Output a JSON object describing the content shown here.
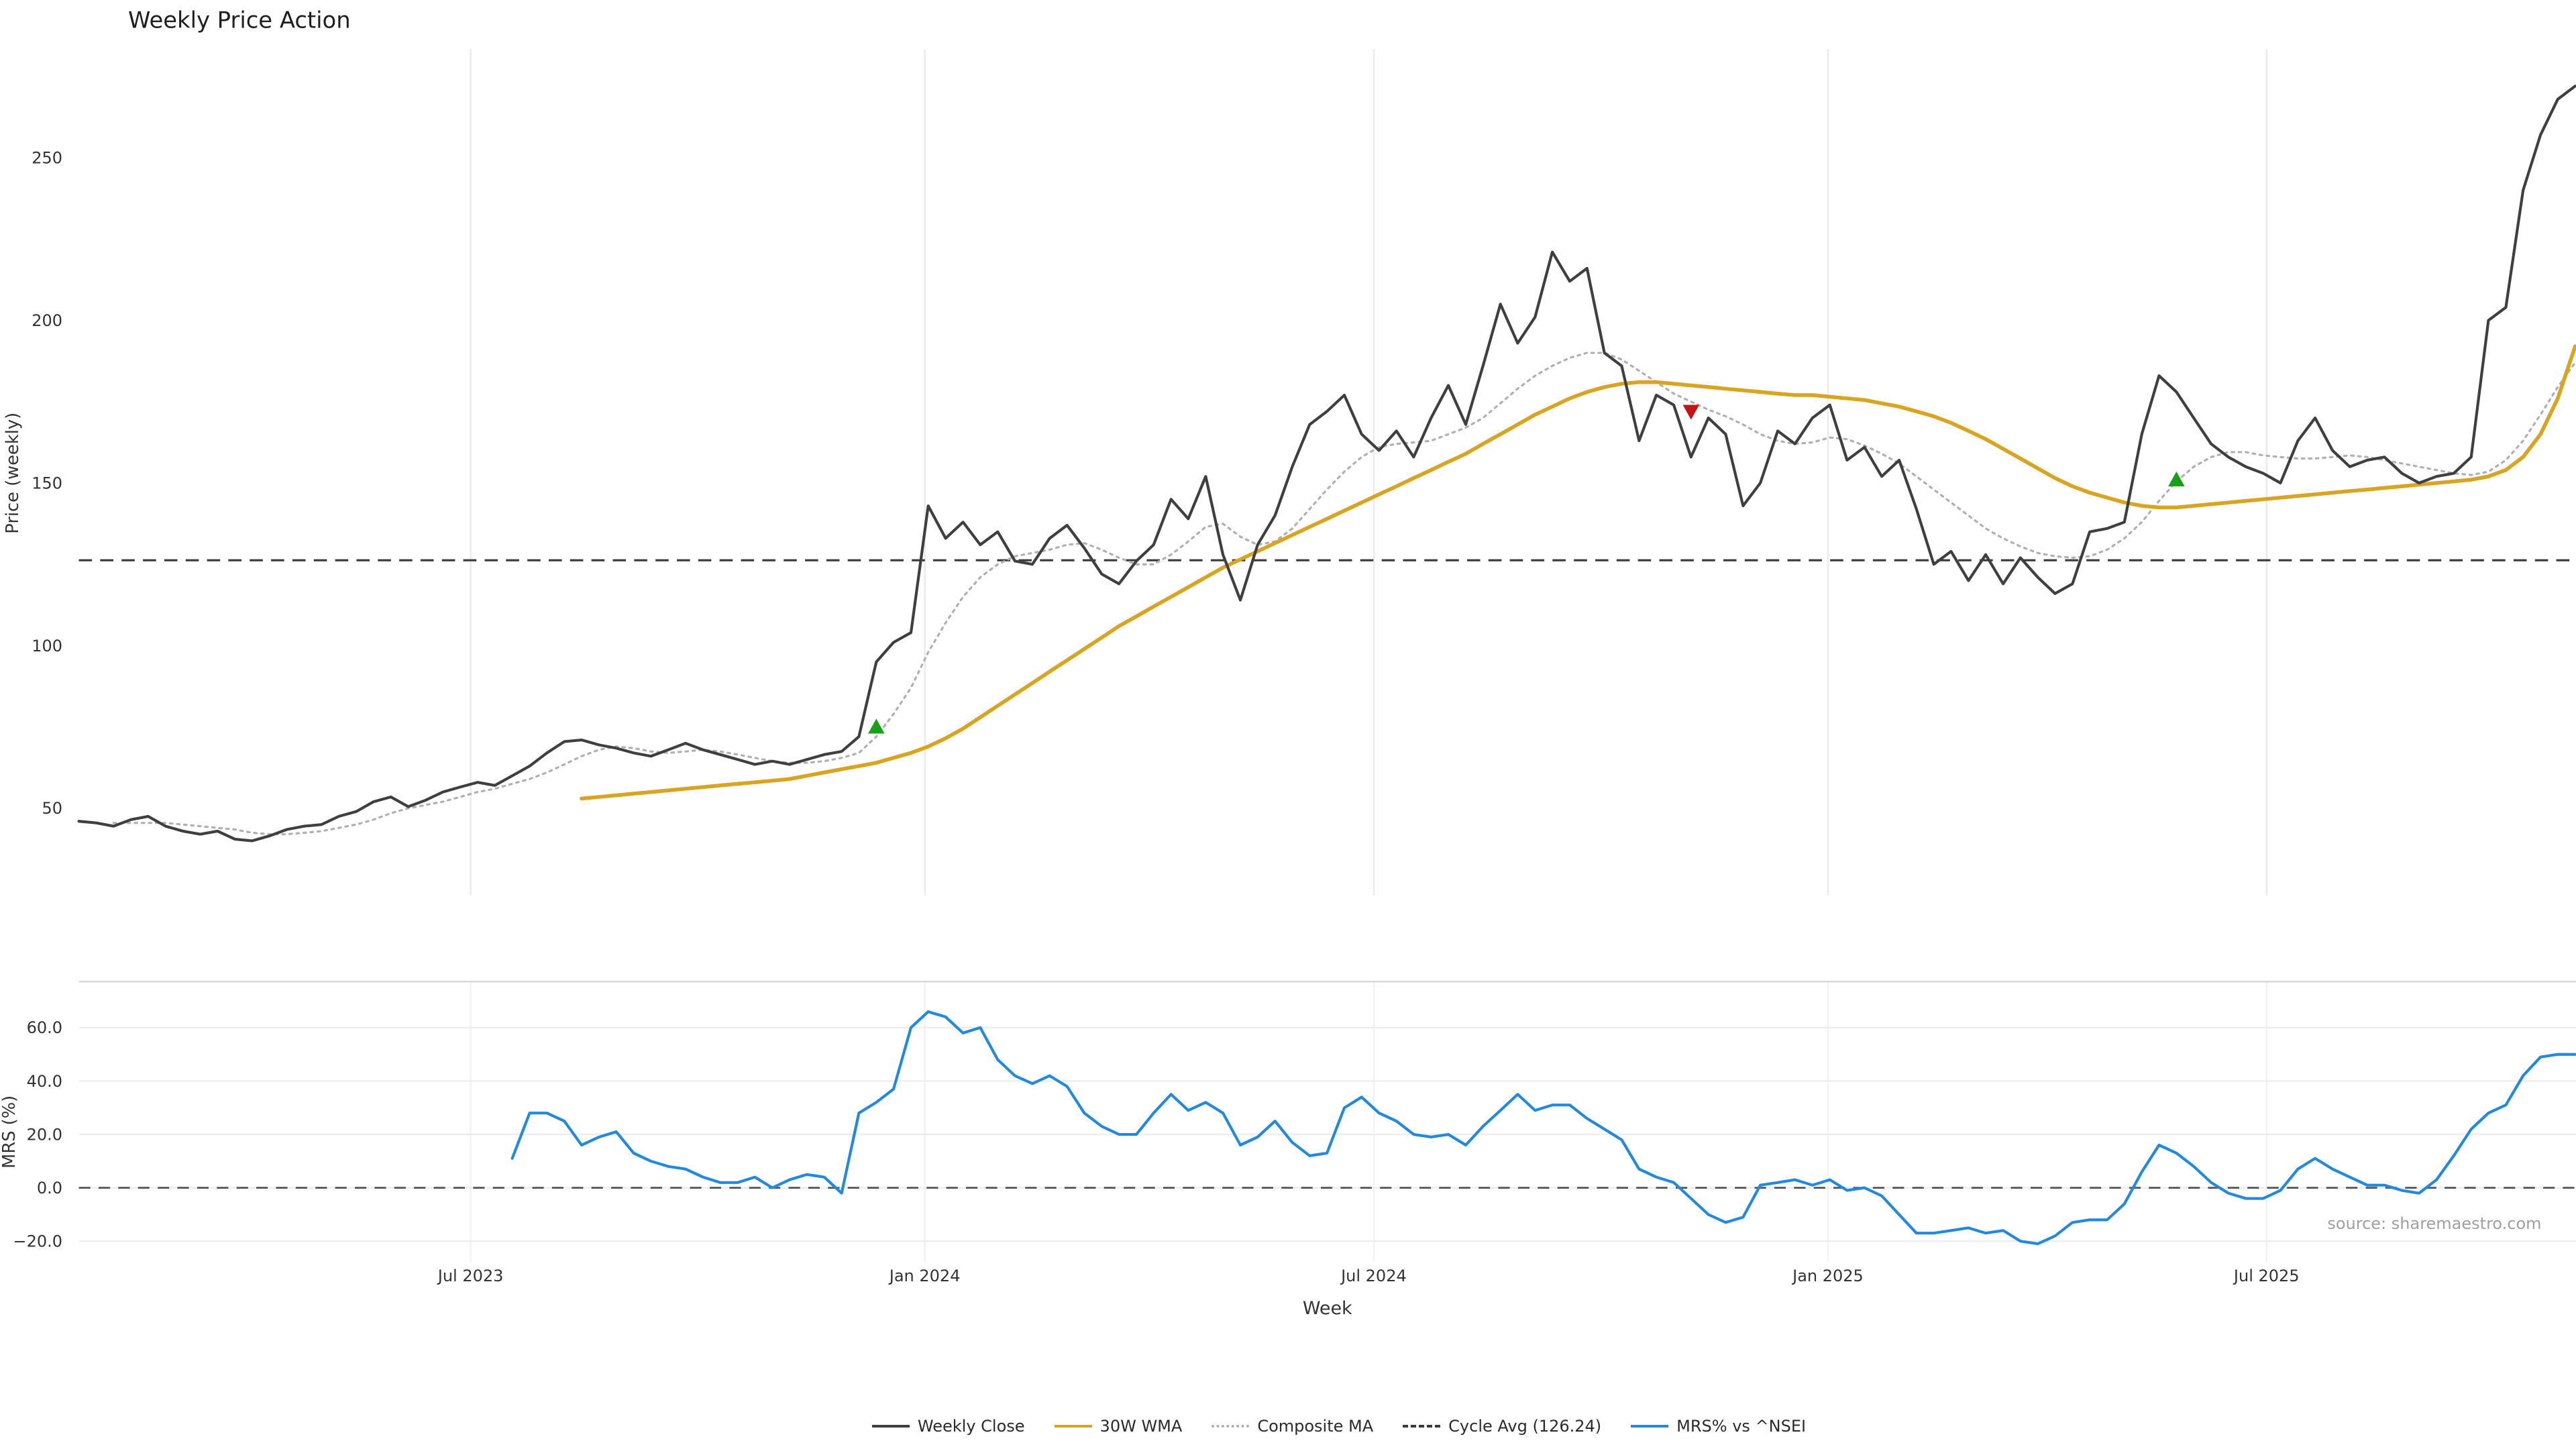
{
  "title": "Weekly Price Action",
  "source_note": "source: sharemaestro.com",
  "axes": {
    "xlabel": "Week",
    "price_ylabel": "Price (weekly)",
    "mrs_ylabel": "MRS (%)"
  },
  "colors": {
    "close": "#3f3f3f",
    "wma": "#d9a521",
    "composite": "#b0b0b0",
    "cycle_avg": "#3a3a3a",
    "mrs": "#2289e0",
    "buy": "#18a018",
    "sell": "#c41414",
    "grid": "#ebebeb",
    "grid_mrs": "#ededed",
    "spine": "#d8d8d8",
    "tick_text": "#333333",
    "source_text": "#a0a0a0"
  },
  "legend": [
    {
      "label": "Weekly Close",
      "color": "#3f3f3f",
      "line": "solid"
    },
    {
      "label": "30W WMA",
      "color": "#d9a521",
      "line": "solid"
    },
    {
      "label": "Composite MA",
      "color": "#b0b0b0",
      "line": "dotted"
    },
    {
      "label": "Cycle Avg (126.24)",
      "color": "#3a3a3a",
      "line": "dashed"
    },
    {
      "label": "MRS% vs ^NSEI",
      "color": "#2289e0",
      "line": "solid"
    }
  ],
  "chart_data": [
    {
      "type": "line",
      "panel": "price",
      "title": "Weekly Price Action",
      "xlabel": "Week",
      "ylabel": "Price (weekly)",
      "ylim": [
        23,
        283
      ],
      "x_unit": "week index (145 weekly observations shown)",
      "grid": "vertical gridlines at x ticks",
      "legend_position": "bottom center, outside plot",
      "yticks": [
        {
          "label": "250",
          "value": 250
        },
        {
          "label": "200",
          "value": 200
        },
        {
          "label": "150",
          "value": 150
        },
        {
          "label": "100",
          "value": 100
        },
        {
          "label": "50",
          "value": 50
        }
      ],
      "xticks": [
        {
          "label": "Jul 2023",
          "index": 22.6
        },
        {
          "label": "Jan 2024",
          "index": 48.8
        },
        {
          "label": "Jul 2024",
          "index": 74.7
        },
        {
          "label": "Jan 2025",
          "index": 100.9
        },
        {
          "label": "Jul 2025",
          "index": 126.2
        }
      ],
      "hline": {
        "name": "Cycle Avg (126.24)",
        "value": 126.24,
        "style": "dashed"
      },
      "markers": [
        {
          "type": "buy",
          "index": 46,
          "value": 75
        },
        {
          "type": "sell",
          "index": 93,
          "value": 172
        },
        {
          "type": "buy",
          "index": 121,
          "value": 151
        }
      ],
      "series": [
        {
          "name": "Composite MA",
          "style": "dotted",
          "color": "#b0b0b0",
          "start_index": 2,
          "values": [
            45.5,
            45.5,
            45.5,
            45.5,
            45,
            44.5,
            44,
            43.5,
            42.5,
            42,
            42,
            42.5,
            43,
            44,
            45,
            46.5,
            48.5,
            50,
            51,
            52,
            53.5,
            55,
            56,
            57.5,
            59,
            61,
            63.5,
            66,
            68,
            69,
            68.5,
            67.5,
            67,
            67.5,
            68,
            67.5,
            66.5,
            65.5,
            64.5,
            64,
            64,
            64.5,
            65.5,
            67,
            72,
            79,
            87,
            98,
            107,
            115,
            121,
            125,
            127.5,
            128.5,
            129.5,
            131,
            131.5,
            129.5,
            127,
            125,
            125,
            128,
            132,
            136.5,
            137.5,
            133.5,
            131,
            132,
            136,
            142,
            148,
            153.5,
            158,
            161,
            162,
            162.5,
            163,
            165,
            167,
            170,
            174.5,
            179,
            183,
            186,
            188.5,
            190,
            190,
            188,
            184.5,
            181,
            177.5,
            175,
            172.5,
            170.5,
            168,
            165,
            163,
            162,
            162.5,
            164,
            163.5,
            161.5,
            159,
            156,
            152,
            148,
            144,
            140,
            136,
            133,
            130.5,
            128.5,
            127.5,
            127,
            127.5,
            129.5,
            133,
            138,
            144.5,
            150.5,
            155,
            158,
            159.5,
            159.5,
            158.5,
            158,
            157.5,
            157.5,
            158,
            158.5,
            158,
            157,
            156,
            155,
            154,
            153,
            152.5,
            153.5,
            157,
            163,
            171,
            179.5,
            187
          ]
        },
        {
          "name": "30W WMA",
          "style": "solid",
          "color": "#d9a521",
          "start_index": 29,
          "values": [
            53,
            53.5,
            54,
            54.5,
            55,
            55.5,
            56,
            56.5,
            57,
            57.5,
            58,
            58.5,
            59,
            60,
            61,
            62,
            63,
            64,
            65.5,
            67,
            69,
            71.5,
            74.5,
            78,
            81.5,
            85,
            88.5,
            92,
            95.5,
            99,
            102.5,
            106,
            109,
            112,
            115,
            118,
            121,
            124,
            126.5,
            129,
            131.5,
            134,
            136.5,
            139,
            141.5,
            144,
            146.5,
            149,
            151.5,
            154,
            156.5,
            159,
            162,
            165,
            168,
            171,
            173.5,
            176,
            178,
            179.5,
            180.5,
            181,
            181,
            180.5,
            180,
            179.5,
            179,
            178.5,
            178,
            177.5,
            177,
            177,
            176.5,
            176,
            175.5,
            174.5,
            173.5,
            172,
            170.5,
            168.5,
            166,
            163.5,
            160.5,
            157.5,
            154.5,
            151.5,
            149,
            147,
            145.5,
            144,
            143,
            142.5,
            142.5,
            143,
            143.5,
            144,
            144.5,
            145,
            145.5,
            146,
            146.5,
            147,
            147.5,
            148,
            148.5,
            149,
            149.5,
            150,
            150.5,
            151,
            152,
            154,
            158,
            165,
            176,
            192
          ]
        },
        {
          "name": "Weekly Close",
          "style": "solid",
          "color": "#3f3f3f",
          "start_index": 0,
          "values": [
            46,
            45.5,
            44.5,
            46.5,
            47.5,
            44.5,
            43,
            42,
            43,
            40.5,
            40,
            41.5,
            43.5,
            44.5,
            45,
            47.5,
            49,
            52,
            53.5,
            50.5,
            52.5,
            55,
            56.5,
            58,
            57,
            60,
            63,
            67,
            70.5,
            71,
            69.5,
            68.5,
            67,
            66,
            68,
            70,
            68,
            66.5,
            65,
            63.5,
            64.5,
            63.5,
            65,
            66.5,
            67.5,
            72,
            95,
            101,
            104,
            143,
            133,
            138,
            131,
            135,
            126,
            125,
            133,
            137,
            130,
            122,
            119,
            126,
            131,
            145,
            139,
            152,
            128,
            114,
            131,
            140,
            155,
            168,
            172,
            177,
            165,
            160,
            166,
            158,
            170,
            180,
            168,
            186,
            205,
            193,
            201,
            221,
            212,
            216,
            190,
            186,
            163,
            177,
            174,
            158,
            170,
            165,
            143,
            150,
            166,
            162,
            170,
            174,
            157,
            161,
            152,
            157,
            142,
            125,
            129,
            120,
            128,
            119,
            127,
            121,
            116,
            119,
            135,
            136,
            138,
            165,
            183,
            178,
            170,
            162,
            158,
            155,
            153,
            150,
            163,
            170,
            160,
            155,
            157,
            158,
            153,
            150,
            152,
            153,
            158,
            200,
            204,
            240,
            257,
            268,
            272
          ]
        }
      ]
    },
    {
      "type": "line",
      "panel": "mrs",
      "ylabel": "MRS (%)",
      "ylim": [
        -28,
        77
      ],
      "yticks": [
        {
          "label": "60.0",
          "value": 60
        },
        {
          "label": "40.0",
          "value": 40
        },
        {
          "label": "20.0",
          "value": 20
        },
        {
          "label": "0.0",
          "value": 0
        },
        {
          "label": "−20.0",
          "value": -20
        }
      ],
      "hline": {
        "name": "zero line",
        "value": 0,
        "style": "dashed"
      },
      "series": [
        {
          "name": "MRS% vs ^NSEI",
          "style": "solid",
          "color": "#2289e0",
          "start_index": 25,
          "values": [
            11,
            28,
            28,
            25,
            16,
            19,
            21,
            13,
            10,
            8,
            7,
            4,
            2,
            2,
            4,
            0,
            3,
            5,
            4,
            -2,
            28,
            32,
            37,
            60,
            66,
            64,
            58,
            60,
            48,
            42,
            39,
            42,
            38,
            28,
            23,
            20,
            20,
            28,
            35,
            29,
            32,
            28,
            16,
            19,
            25,
            17,
            12,
            13,
            30,
            34,
            28,
            25,
            20,
            19,
            20,
            16,
            23,
            29,
            35,
            29,
            31,
            31,
            26,
            22,
            18,
            7,
            4,
            2,
            -4,
            -10,
            -13,
            -11,
            1,
            2,
            3,
            1,
            3,
            -1,
            0,
            -3,
            -10,
            -17,
            -17,
            -16,
            -15,
            -17,
            -16,
            -20,
            -21,
            -18,
            -13,
            -12,
            -12,
            -6,
            6,
            16,
            13,
            8,
            2,
            -2,
            -4,
            -4,
            -1,
            7,
            11,
            7,
            4,
            1,
            1,
            -1,
            -2,
            3,
            12,
            22,
            28,
            31,
            42,
            49,
            50,
            50
          ]
        }
      ]
    }
  ]
}
